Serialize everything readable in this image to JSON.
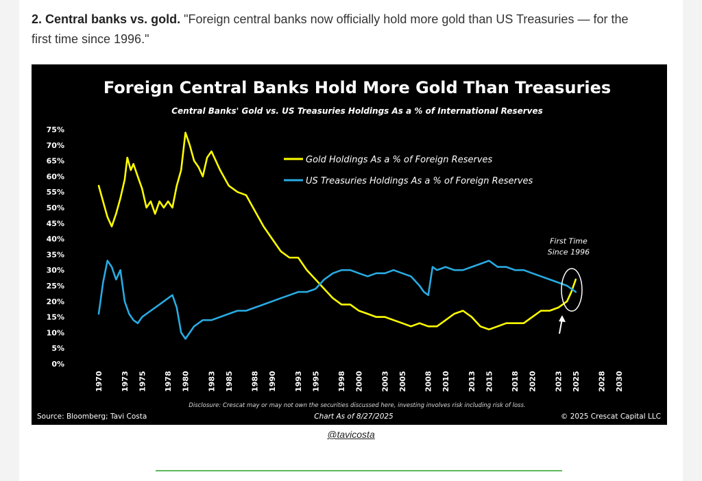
{
  "article": {
    "heading_bold": "2. Central banks vs. gold.",
    "heading_text": "\"Foreign central banks now officially hold more gold than US Treasuries — for the first time since 1996.\""
  },
  "credit": "@tavicosta",
  "chart_data": {
    "type": "line",
    "title": "Foreign Central Banks Hold More Gold Than Treasuries",
    "subtitle": "Central Banks' Gold vs. US Treasuries Holdings As a % of International Reserves",
    "xlabel": "",
    "ylabel": "",
    "ylim": [
      0,
      75
    ],
    "yticks": [
      0,
      5,
      10,
      15,
      20,
      25,
      30,
      35,
      40,
      45,
      50,
      55,
      60,
      65,
      70,
      75
    ],
    "ytick_labels": [
      "0%",
      "5%",
      "10%",
      "15%",
      "20%",
      "25%",
      "30%",
      "35%",
      "40%",
      "45%",
      "50%",
      "55%",
      "60%",
      "65%",
      "70%",
      "75%"
    ],
    "xlim": [
      1970,
      2030
    ],
    "xticks": [
      1970,
      1973,
      1975,
      1978,
      1980,
      1983,
      1985,
      1988,
      1990,
      1993,
      1995,
      1998,
      2000,
      2003,
      2005,
      2008,
      2010,
      2013,
      2015,
      2018,
      2020,
      2023,
      2025,
      2028,
      2030
    ],
    "xtick_labels": [
      "1970",
      "1973",
      "1975",
      "1978",
      "1980",
      "1983",
      "1985",
      "1988",
      "1990",
      "1993",
      "1995",
      "1998",
      "2000",
      "2003",
      "2005",
      "2008",
      "2010",
      "2013",
      "2015",
      "2018",
      "2020",
      "2023",
      "2025",
      "2028",
      "2030"
    ],
    "grid": false,
    "legend_position": "top-center",
    "background": "#000000",
    "series": [
      {
        "name": "Gold Holdings As a % of Foreign Reserves",
        "color": "#ffff00",
        "x": [
          1970,
          1970.5,
          1971,
          1971.5,
          1972,
          1972.5,
          1973,
          1973.3,
          1973.7,
          1974,
          1974.5,
          1975,
          1975.5,
          1976,
          1976.5,
          1977,
          1977.5,
          1978,
          1978.5,
          1979,
          1979.5,
          1980,
          1980.5,
          1981,
          1981.5,
          1982,
          1982.5,
          1983,
          1983.5,
          1984,
          1985,
          1986,
          1987,
          1988,
          1989,
          1990,
          1991,
          1992,
          1993,
          1994,
          1995,
          1996,
          1997,
          1998,
          1999,
          2000,
          2001,
          2002,
          2003,
          2004,
          2005,
          2006,
          2007,
          2008,
          2009,
          2010,
          2011,
          2012,
          2013,
          2014,
          2015,
          2016,
          2017,
          2018,
          2019,
          2020,
          2021,
          2022,
          2023,
          2024,
          2024.5,
          2025
        ],
        "values": [
          57,
          52,
          47,
          44,
          48,
          53,
          59,
          66,
          62,
          64,
          60,
          56,
          50,
          52,
          48,
          52,
          50,
          52,
          50,
          57,
          62,
          74,
          70,
          65,
          63,
          60,
          66,
          68,
          65,
          62,
          57,
          55,
          54,
          49,
          44,
          40,
          36,
          34,
          34,
          30,
          27,
          24,
          21,
          19,
          19,
          17,
          16,
          15,
          15,
          14,
          13,
          12,
          13,
          12,
          12,
          14,
          16,
          17,
          15,
          12,
          11,
          12,
          13,
          13,
          13,
          15,
          17,
          17,
          18,
          20,
          23,
          27
        ]
      },
      {
        "name": "US Treasuries Holdings As a % of Foreign Reserves",
        "color": "#29abe2",
        "x": [
          1970,
          1970.5,
          1971,
          1971.5,
          1972,
          1972.5,
          1973,
          1973.5,
          1974,
          1974.5,
          1975,
          1976,
          1977,
          1978,
          1978.5,
          1979,
          1979.5,
          1980,
          1980.5,
          1981,
          1982,
          1983,
          1984,
          1985,
          1986,
          1987,
          1988,
          1989,
          1990,
          1991,
          1992,
          1993,
          1994,
          1995,
          1996,
          1997,
          1998,
          1999,
          2000,
          2001,
          2002,
          2003,
          2004,
          2005,
          2006,
          2007,
          2007.5,
          2008,
          2008.5,
          2009,
          2010,
          2011,
          2012,
          2013,
          2014,
          2015,
          2016,
          2017,
          2018,
          2019,
          2020,
          2021,
          2022,
          2023,
          2024,
          2025
        ],
        "values": [
          16,
          26,
          33,
          31,
          27,
          30,
          20,
          16,
          14,
          13,
          15,
          17,
          19,
          21,
          22,
          18,
          10,
          8,
          10,
          12,
          14,
          14,
          15,
          16,
          17,
          17,
          18,
          19,
          20,
          21,
          22,
          23,
          23,
          24,
          27,
          29,
          30,
          30,
          29,
          28,
          29,
          29,
          30,
          29,
          28,
          25,
          23,
          22,
          31,
          30,
          31,
          30,
          30,
          31,
          32,
          33,
          31,
          31,
          30,
          30,
          29,
          28,
          27,
          26,
          25,
          23
        ]
      }
    ],
    "annotations": [
      {
        "text": "First Time",
        "x": 2024.5,
        "y": 38.5
      },
      {
        "text": "Since 1996",
        "x": 2024.5,
        "y": 35
      }
    ],
    "footer": {
      "disclosure": "Disclosure: Crescat may or may not own the securities discussed here, investing involves risk including risk of loss.",
      "source": "Source: Bloomberg; Tavi Costa",
      "asof": "Chart As of 8/27/2025",
      "copyright": "© 2025 Crescat Capital LLC"
    }
  }
}
